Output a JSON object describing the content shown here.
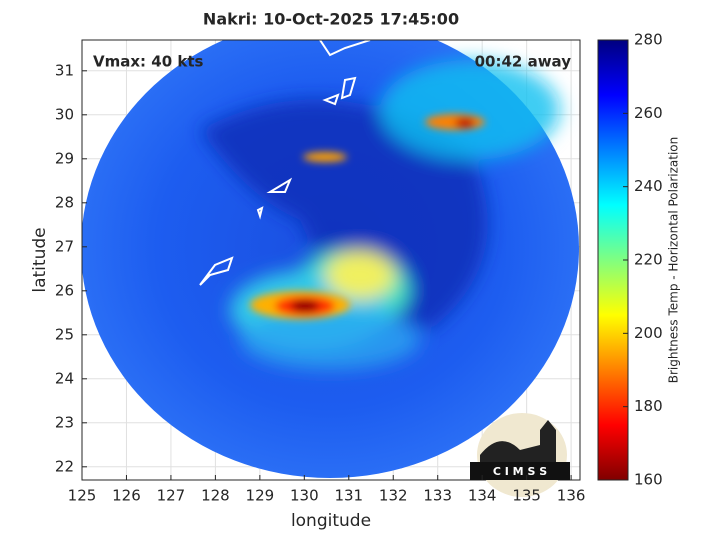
{
  "map": {
    "title": "Nakri: 10-Oct-2025 17:45:00",
    "annotations": [
      "Vmax: 40 kts",
      "00:42 away"
    ],
    "xlabel": "longitude",
    "ylabel": "latitude",
    "xlim": [
      125,
      136.2
    ],
    "ylim": [
      21.7,
      31.7
    ],
    "xticks": [
      125,
      126,
      127,
      128,
      129,
      130,
      131,
      132,
      133,
      134,
      135,
      136
    ],
    "yticks": [
      22,
      23,
      24,
      25,
      26,
      27,
      28,
      29,
      30,
      31
    ],
    "grid": true,
    "colorbar": {
      "label": "Brightness Temp - Horizontal Polarization",
      "lim": [
        160,
        280
      ],
      "ticks": [
        160,
        180,
        200,
        220,
        240,
        260,
        280
      ],
      "colors": [
        "#800000",
        "#ff0000",
        "#ff8000",
        "#ffff00",
        "#80ff80",
        "#00ffff",
        "#0080ff",
        "#0000ff",
        "#000080"
      ]
    },
    "logo": "C I M S S"
  }
}
